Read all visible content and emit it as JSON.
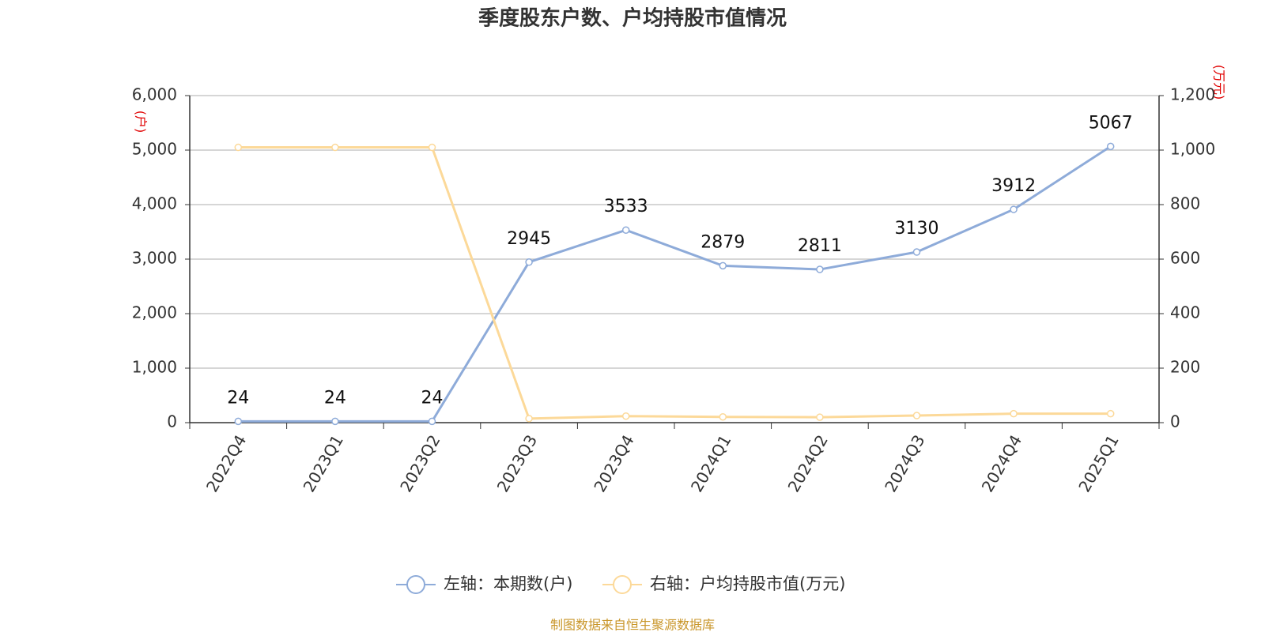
{
  "chart_data": {
    "type": "line",
    "title": "季度股东户数、户均持股市值情况",
    "y_label": "(户)",
    "y2_label": "(万元)",
    "categories": [
      "2022Q4",
      "2023Q1",
      "2023Q2",
      "2023Q3",
      "2023Q4",
      "2024Q1",
      "2024Q2",
      "2024Q3",
      "2024Q4",
      "2025Q1"
    ],
    "series": [
      {
        "name": "左轴：本期数(户)",
        "color": "#8eabd9",
        "axis": "y",
        "show_labels": true,
        "values": [
          24,
          24,
          24,
          2945,
          3533,
          2879,
          2811,
          3130,
          3912,
          5067
        ]
      },
      {
        "name": "右轴：户均持股市值(万元)",
        "color": "#fcd999",
        "axis": "y2",
        "show_labels": false,
        "values": [
          1010,
          1010,
          1010,
          15,
          24,
          21,
          20,
          26,
          33,
          33
        ]
      }
    ],
    "ylim": [
      0,
      6000
    ],
    "yticks": [
      0,
      {
        "value": 1000,
        "label": "1,000"
      },
      {
        "value": 2000,
        "label": "2,000"
      },
      {
        "value": 3000,
        "label": "3,000"
      },
      {
        "value": 4000,
        "label": "4,000"
      },
      {
        "value": 5000,
        "label": "5,000"
      },
      {
        "value": 6000,
        "label": "6,000"
      }
    ],
    "y2lim": [
      0,
      1200
    ],
    "y2ticks": [
      0,
      200,
      400,
      600,
      800,
      {
        "value": 1000,
        "label": "1,000"
      },
      {
        "value": 1200,
        "label": "1,200"
      }
    ],
    "grid": true,
    "source": "制图数据来自恒生聚源数据库"
  }
}
